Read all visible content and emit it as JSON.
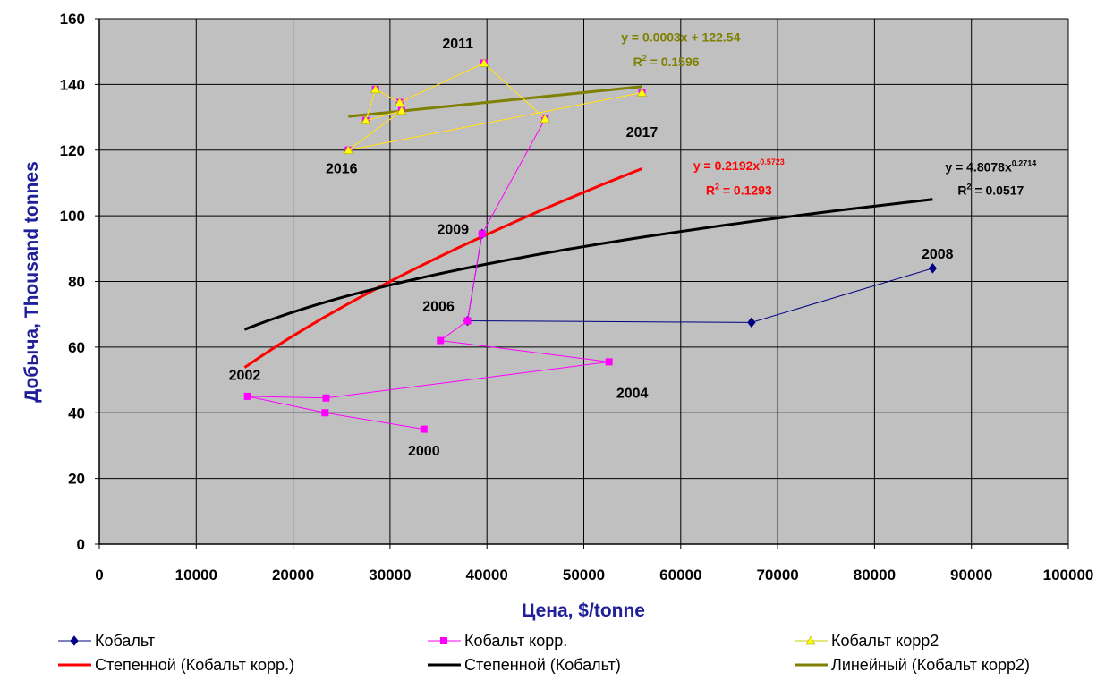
{
  "chart_data": {
    "type": "scatter",
    "xlabel": "Цена, $/tonne",
    "ylabel": "Добыча, Thousand tonnes",
    "xlim": [
      0,
      100000
    ],
    "ylim": [
      0,
      160
    ],
    "x_ticks": [
      "0",
      "10000",
      "20000",
      "30000",
      "40000",
      "50000",
      "60000",
      "70000",
      "80000",
      "90000",
      "100000"
    ],
    "y_ticks": [
      "0",
      "20",
      "40",
      "60",
      "80",
      "100",
      "120",
      "140",
      "160"
    ],
    "grid": true,
    "plot_background": "#c0c0c0",
    "legend_position": "bottom",
    "series": [
      {
        "name": "Кобальт",
        "kind": "markers-lines",
        "marker": "diamond",
        "color": "#000080",
        "points": [
          [
            86000,
            84
          ],
          [
            67300,
            67.5
          ],
          [
            38000,
            68
          ],
          [
            39500,
            94.5
          ]
        ]
      },
      {
        "name": "Кобальт корр.",
        "kind": "markers-lines",
        "marker": "square",
        "color": "#ff00ff",
        "points": [
          [
            33500,
            35
          ],
          [
            23300,
            40
          ],
          [
            15300,
            45
          ],
          [
            23400,
            44.5
          ],
          [
            52600,
            55.5
          ],
          [
            35200,
            62
          ],
          [
            38000,
            68
          ],
          [
            39500,
            94.5
          ],
          [
            46000,
            129.5
          ],
          [
            39700,
            146.5
          ],
          [
            31000,
            134.5
          ],
          [
            28500,
            138.5
          ],
          [
            27500,
            129
          ],
          [
            31200,
            132
          ],
          [
            25700,
            120
          ],
          [
            56000,
            137.5
          ]
        ]
      },
      {
        "name": "Кобальт корр2",
        "kind": "markers-lines",
        "marker": "triangle",
        "color": "#ffff00",
        "points": [
          [
            46000,
            129.5
          ],
          [
            39700,
            146.5
          ],
          [
            31000,
            134.5
          ],
          [
            28500,
            138.5
          ],
          [
            27500,
            129
          ],
          [
            31200,
            132
          ],
          [
            25700,
            120
          ],
          [
            56000,
            137.5
          ]
        ]
      },
      {
        "name": "Степенной (Кобальт корр.)",
        "kind": "trendline-power",
        "color": "#ff0000",
        "a": 0.2192,
        "b": 0.5723,
        "x_range": [
          15000,
          56000
        ]
      },
      {
        "name": "Степенной (Кобальт)",
        "kind": "trendline-power",
        "color": "#000000",
        "a": 4.8078,
        "b": 0.2714,
        "x_range": [
          15000,
          86000
        ]
      },
      {
        "name": "Линейный (Кобальт корр2)",
        "kind": "trendline-linear",
        "color": "#808000",
        "slope": 0.0003,
        "intercept": 122.54,
        "x_range": [
          25700,
          56000
        ]
      }
    ],
    "annotations": [
      {
        "text": "2011",
        "x": 37000,
        "y": 151
      },
      {
        "text": "2017",
        "x": 56000,
        "y": 124
      },
      {
        "text": "2016",
        "x": 25000,
        "y": 113
      },
      {
        "text": "2009",
        "x": 36500,
        "y": 94.5
      },
      {
        "text": "2008",
        "x": 86500,
        "y": 87
      },
      {
        "text": "2006",
        "x": 35000,
        "y": 71
      },
      {
        "text": "2002",
        "x": 15000,
        "y": 50
      },
      {
        "text": "2004",
        "x": 55000,
        "y": 44.5
      },
      {
        "text": "2000",
        "x": 33500,
        "y": 27
      }
    ],
    "equations": [
      {
        "color": "#808000",
        "x": 60000,
        "y": 153,
        "line1": "y = 0.0003x + 122.54",
        "r2": " = 0.1596",
        "r2_x": 58500,
        "r2_y": 145.5
      },
      {
        "color": "#ff0000",
        "x": 66000,
        "y": 114,
        "line1": "y = 0.2192x",
        "sup": "0.5723",
        "r2": " = 0.1293",
        "r2_x": 66000,
        "r2_y": 106.5
      },
      {
        "color": "#000000",
        "x": 92000,
        "y": 113.5,
        "line1": "y = 4.8078x",
        "sup": "0.2714",
        "r2": " = 0.0517",
        "r2_x": 92000,
        "r2_y": 106.5
      }
    ]
  }
}
